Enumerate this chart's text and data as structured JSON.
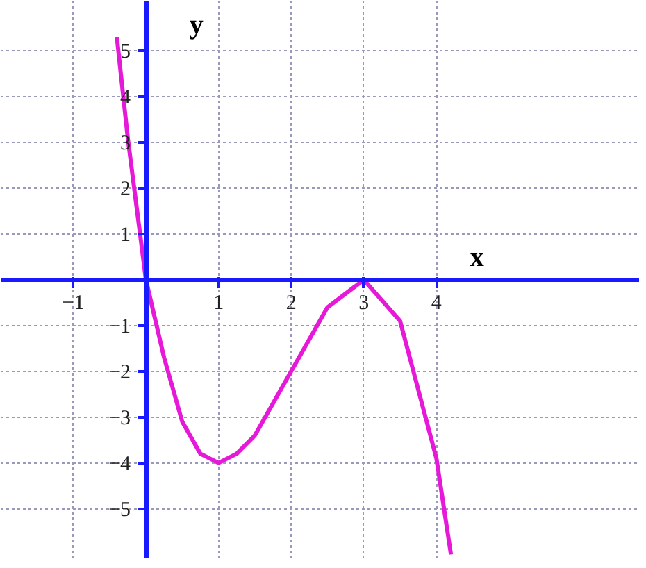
{
  "chart_data": {
    "type": "line",
    "xlabel": "x",
    "ylabel": "y",
    "x": [
      -0.4,
      -0.25,
      0,
      0.25,
      0.5,
      0.75,
      1,
      1.25,
      1.5,
      2,
      2.5,
      3,
      3.5,
      4,
      4.2
    ],
    "series": [
      {
        "color": "#e619d9",
        "values": [
          5.3,
          3.1,
          0,
          -1.7,
          -3.1,
          -3.8,
          -4,
          -3.8,
          -3.4,
          -2,
          -0.6,
          0,
          -0.9,
          -3.9,
          -6.0
        ]
      }
    ],
    "xlim": [
      -2,
      6.8
    ],
    "ylim": [
      -6.1,
      6.1
    ],
    "xticks": [
      -1,
      1,
      2,
      3,
      4
    ],
    "yticks": [
      -5,
      -4,
      -3,
      -2,
      -1,
      1,
      2,
      3,
      4,
      5
    ],
    "grid": true,
    "line_style": "solid",
    "marker": "none"
  }
}
